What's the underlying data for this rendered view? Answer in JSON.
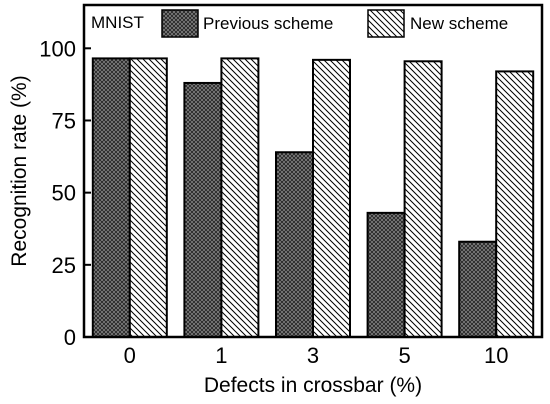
{
  "chart_data": {
    "type": "bar",
    "panel_label": "MNIST",
    "categories": [
      "0",
      "1",
      "3",
      "5",
      "10"
    ],
    "series": [
      {
        "name": "Previous scheme",
        "values": [
          96.5,
          88,
          64,
          43,
          33
        ],
        "pattern": "crosshatch"
      },
      {
        "name": "New scheme",
        "values": [
          96.5,
          96.5,
          96,
          95.5,
          92
        ],
        "pattern": "diagonal"
      }
    ],
    "xlabel": "Defects in crossbar (%)",
    "ylabel": "Recognition rate (%)",
    "ylim": [
      0,
      115
    ],
    "yticks": [
      0,
      25,
      50,
      75,
      100
    ],
    "grid": false,
    "legend_position": "top"
  }
}
